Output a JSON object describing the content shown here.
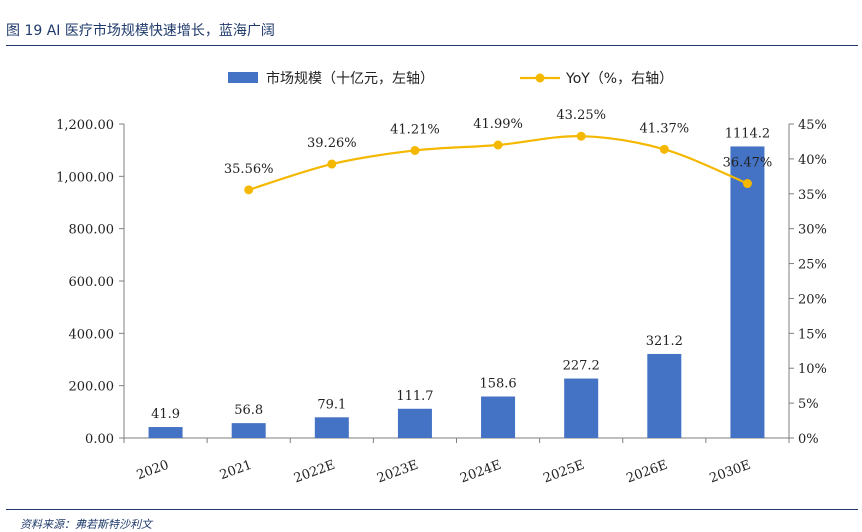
{
  "figure": {
    "title": "图 19 AI 医疗市场规模快速增长，蓝海广阔",
    "source": "资料来源：弗若斯特沙利文"
  },
  "chart_data": {
    "type": "bar+line",
    "categories": [
      "2020",
      "2021",
      "2022E",
      "2023E",
      "2024E",
      "2025E",
      "2026E",
      "2030E"
    ],
    "series": [
      {
        "name": "市场规模（十亿元，左轴）",
        "type": "bar",
        "axis": "left",
        "color": "#4472c4",
        "values": [
          41.9,
          56.8,
          79.1,
          111.7,
          158.6,
          227.2,
          321.2,
          1114.2
        ],
        "labels": [
          "41.9",
          "56.8",
          "79.1",
          "111.7",
          "158.6",
          "227.2",
          "321.2",
          "1114.2"
        ]
      },
      {
        "name": "YoY（%，右轴）",
        "type": "line",
        "axis": "right",
        "color": "#f5b800",
        "values": [
          null,
          35.56,
          39.26,
          41.21,
          41.99,
          43.25,
          41.37,
          36.47
        ],
        "labels": [
          "",
          "35.56%",
          "39.26%",
          "41.21%",
          "41.99%",
          "43.25%",
          "41.37%",
          "36.47%"
        ]
      }
    ],
    "y_left": {
      "range": [
        0,
        1200
      ],
      "ticks": [
        "0.00",
        "200.00",
        "400.00",
        "600.00",
        "800.00",
        "1,000.00",
        "1,200.00"
      ]
    },
    "y_right": {
      "range": [
        0,
        45
      ],
      "ticks": [
        "0%",
        "5%",
        "10%",
        "15%",
        "20%",
        "25%",
        "30%",
        "35%",
        "40%",
        "45%"
      ]
    },
    "grid": false,
    "legend": "top-center"
  }
}
